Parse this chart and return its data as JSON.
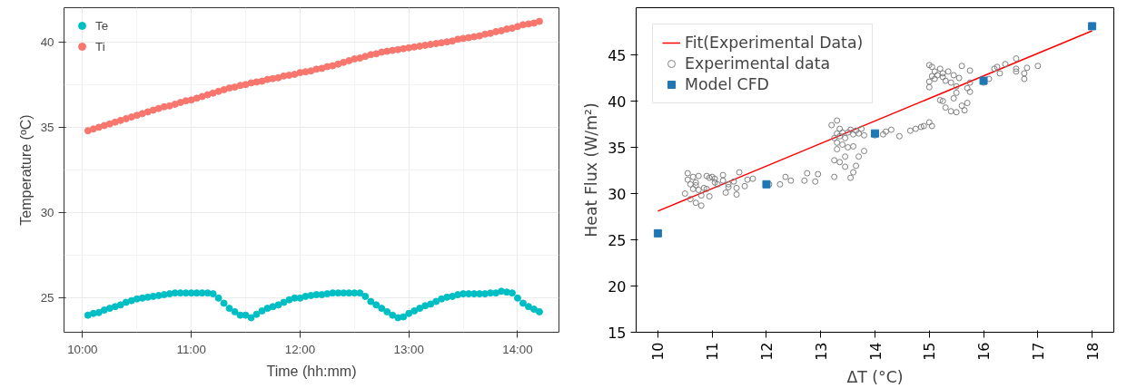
{
  "chart_data": [
    {
      "type": "scatter",
      "xlabel": "Time (hh:mm)",
      "ylabel": "Temperature (ºC)",
      "marker": "circle",
      "grid": true,
      "legend": "top left",
      "xlim": [
        9.83,
        14.38
      ],
      "ylim": [
        23,
        42
      ],
      "xticks": [
        {
          "value": 10,
          "label": "10:00"
        },
        {
          "value": 11,
          "label": "11:00"
        },
        {
          "value": 12,
          "label": "12:00"
        },
        {
          "value": 13,
          "label": "13:00"
        },
        {
          "value": 14,
          "label": "14:00"
        }
      ],
      "yticks": [
        25,
        30,
        35,
        40
      ],
      "x": [
        10.05,
        10.1,
        10.15,
        10.2,
        10.25,
        10.3,
        10.35,
        10.4,
        10.45,
        10.5,
        10.55,
        10.6,
        10.65,
        10.7,
        10.75,
        10.8,
        10.85,
        10.9,
        10.95,
        11.0,
        11.05,
        11.1,
        11.15,
        11.2,
        11.25,
        11.3,
        11.35,
        11.4,
        11.45,
        11.5,
        11.55,
        11.6,
        11.65,
        11.7,
        11.75,
        11.8,
        11.85,
        11.9,
        11.95,
        12.0,
        12.05,
        12.1,
        12.15,
        12.2,
        12.25,
        12.3,
        12.35,
        12.4,
        12.45,
        12.5,
        12.55,
        12.6,
        12.65,
        12.7,
        12.75,
        12.8,
        12.85,
        12.9,
        12.95,
        13.0,
        13.05,
        13.1,
        13.15,
        13.2,
        13.25,
        13.3,
        13.35,
        13.4,
        13.45,
        13.5,
        13.55,
        13.6,
        13.65,
        13.7,
        13.75,
        13.8,
        13.85,
        13.9,
        13.95,
        14.0,
        14.05,
        14.1,
        14.15,
        14.2
      ],
      "series": [
        {
          "name": "Te",
          "color": "#00bfc4",
          "values": [
            24.0,
            24.1,
            24.15,
            24.3,
            24.4,
            24.5,
            24.6,
            24.75,
            24.85,
            24.95,
            25.0,
            25.05,
            25.1,
            25.15,
            25.2,
            25.25,
            25.3,
            25.3,
            25.3,
            25.3,
            25.3,
            25.3,
            25.3,
            25.25,
            25.0,
            24.7,
            24.4,
            24.2,
            24.0,
            24.0,
            23.85,
            24.05,
            24.25,
            24.4,
            24.5,
            24.6,
            24.75,
            24.9,
            25.0,
            25.0,
            25.1,
            25.15,
            25.2,
            25.2,
            25.25,
            25.3,
            25.3,
            25.3,
            25.3,
            25.3,
            25.3,
            25.1,
            24.8,
            24.6,
            24.4,
            24.2,
            24.0,
            23.85,
            23.9,
            24.1,
            24.25,
            24.4,
            24.55,
            24.65,
            24.8,
            24.95,
            25.05,
            25.1,
            25.2,
            25.25,
            25.25,
            25.25,
            25.25,
            25.25,
            25.3,
            25.3,
            25.4,
            25.35,
            25.3,
            25.0,
            24.7,
            24.5,
            24.35,
            24.2
          ]
        },
        {
          "name": "Ti",
          "color": "#f8766d",
          "values": [
            34.8,
            34.9,
            35.0,
            35.1,
            35.2,
            35.3,
            35.4,
            35.5,
            35.6,
            35.7,
            35.8,
            35.9,
            36.0,
            36.1,
            36.2,
            36.25,
            36.35,
            36.45,
            36.55,
            36.6,
            36.7,
            36.8,
            36.9,
            37.0,
            37.1,
            37.2,
            37.3,
            37.35,
            37.45,
            37.5,
            37.6,
            37.65,
            37.7,
            37.8,
            37.85,
            37.9,
            38.0,
            38.05,
            38.1,
            38.2,
            38.25,
            38.3,
            38.4,
            38.45,
            38.55,
            38.6,
            38.7,
            38.8,
            38.9,
            39.0,
            39.05,
            39.15,
            39.25,
            39.3,
            39.4,
            39.45,
            39.5,
            39.55,
            39.6,
            39.65,
            39.7,
            39.75,
            39.8,
            39.85,
            39.9,
            39.95,
            40.0,
            40.05,
            40.15,
            40.2,
            40.25,
            40.3,
            40.35,
            40.45,
            40.5,
            40.6,
            40.65,
            40.75,
            40.8,
            40.9,
            41.0,
            41.05,
            41.1,
            41.2
          ]
        }
      ]
    },
    {
      "type": "scatter",
      "xlabel": "ΔT (°C)",
      "ylabel": "Heat Flux (W/m²)",
      "grid": false,
      "legend": "top left",
      "xlim": [
        9.6,
        18.4
      ],
      "ylim": [
        15,
        50.1
      ],
      "xticks": [
        10,
        11,
        12,
        13,
        14,
        15,
        16,
        17,
        18
      ],
      "yticks": [
        15,
        20,
        25,
        30,
        35,
        40,
        45
      ],
      "series": [
        {
          "name": "Fit(Experimental Data)",
          "type": "line",
          "color": "#ff0000",
          "line_style": "solid",
          "x": [
            10,
            18
          ],
          "values": [
            28.1,
            47.6
          ]
        },
        {
          "name": "Experimental data",
          "type": "scatter",
          "marker": "circle",
          "color": "#808080",
          "x": [
            10.5,
            10.55,
            10.55,
            10.6,
            10.6,
            10.65,
            10.65,
            10.7,
            10.7,
            10.7,
            10.75,
            10.75,
            10.8,
            10.8,
            10.85,
            10.9,
            10.9,
            10.95,
            10.95,
            11.0,
            11.05,
            11.05,
            11.1,
            11.2,
            11.2,
            11.25,
            11.3,
            11.3,
            11.4,
            11.45,
            11.45,
            11.5,
            11.6,
            11.65,
            11.75,
            12.05,
            12.25,
            12.35,
            12.45,
            12.7,
            12.75,
            12.9,
            12.95,
            13.2,
            13.25,
            13.25,
            13.25,
            13.3,
            13.3,
            13.3,
            13.3,
            13.35,
            13.35,
            13.35,
            13.4,
            13.4,
            13.45,
            13.45,
            13.45,
            13.5,
            13.5,
            13.55,
            13.55,
            13.6,
            13.6,
            13.6,
            13.65,
            13.65,
            13.7,
            13.7,
            13.75,
            13.8,
            13.8,
            14.0,
            14.15,
            14.2,
            14.3,
            14.45,
            14.65,
            14.75,
            14.85,
            14.9,
            15.0,
            15.05,
            15.0,
            15.0,
            15.0,
            15.05,
            15.05,
            15.1,
            15.1,
            15.15,
            15.2,
            15.2,
            15.25,
            15.25,
            15.25,
            15.3,
            15.3,
            15.35,
            15.4,
            15.4,
            15.45,
            15.45,
            15.5,
            15.5,
            15.5,
            15.55,
            15.6,
            15.6,
            15.65,
            15.7,
            15.7,
            15.75,
            15.75,
            15.75,
            16.0,
            16.1,
            16.2,
            16.25,
            16.3,
            16.4,
            16.6,
            16.6,
            16.6,
            16.75,
            16.75,
            16.8,
            17.0
          ],
          "values": [
            30.0,
            31.5,
            32.2,
            31.0,
            29.4,
            30.5,
            31.8,
            30.9,
            29.0,
            31.2,
            30.4,
            31.9,
            29.8,
            28.7,
            30.6,
            31.9,
            30.5,
            29.7,
            31.7,
            31.8,
            31.2,
            31.6,
            31.0,
            32.0,
            31.4,
            30.1,
            31.0,
            30.7,
            31.3,
            30.6,
            29.9,
            32.3,
            30.8,
            31.5,
            31.6,
            31.0,
            31.0,
            31.8,
            31.4,
            31.4,
            32.2,
            31.3,
            32.1,
            37.4,
            36.0,
            33.6,
            31.8,
            37.9,
            36.5,
            35.5,
            34.8,
            37.0,
            36.2,
            33.4,
            36.6,
            35.3,
            36.0,
            34.0,
            32.9,
            36.6,
            35.0,
            31.7,
            36.9,
            36.4,
            35.1,
            32.3,
            33.0,
            36.8,
            34.0,
            36.5,
            37.0,
            34.6,
            36.3,
            36.3,
            36.4,
            36.7,
            36.9,
            36.2,
            36.8,
            37.0,
            37.2,
            37.3,
            37.7,
            37.3,
            43.9,
            42.1,
            41.5,
            43.7,
            42.7,
            43.2,
            42.4,
            42.8,
            43.5,
            40.1,
            42.6,
            43.0,
            40.0,
            42.2,
            39.3,
            43.2,
            42.0,
            38.9,
            40.3,
            42.8,
            41.6,
            40.9,
            38.8,
            42.5,
            43.8,
            39.5,
            39.0,
            41.4,
            39.8,
            43.3,
            42.0,
            41.0,
            42.0,
            42.4,
            43.5,
            43.7,
            43.0,
            44.0,
            44.6,
            43.2,
            43.5,
            42.4,
            43.0,
            43.6,
            43.8
          ]
        },
        {
          "name": "Model CFD",
          "type": "scatter",
          "marker": "square",
          "color": "#1f77b4",
          "x": [
            10,
            12,
            14,
            16,
            18
          ],
          "values": [
            25.7,
            31.0,
            36.5,
            42.2,
            48.1
          ]
        }
      ]
    }
  ]
}
